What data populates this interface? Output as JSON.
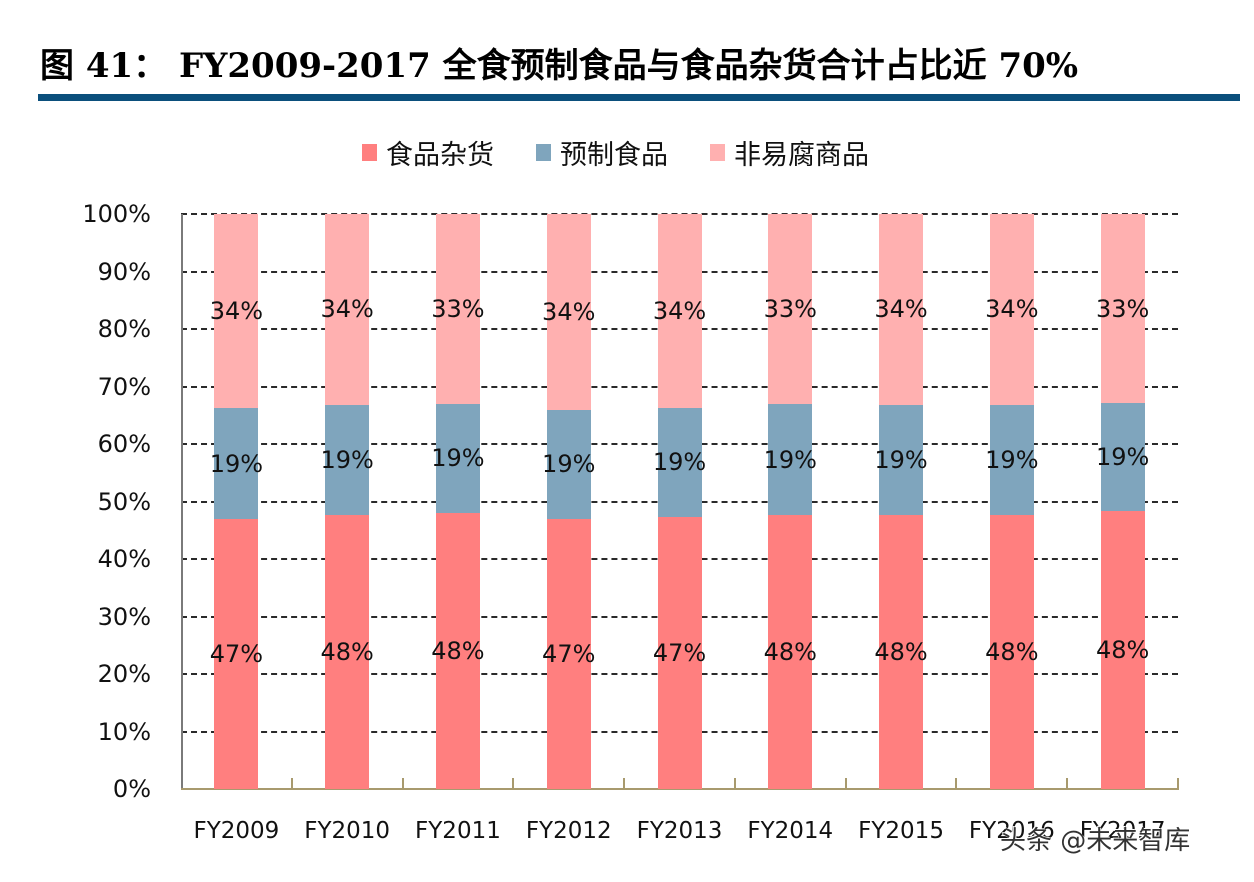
{
  "figure": {
    "title": "图 41：  FY2009-2017 全食预制食品与食品杂货合计占比近 70%",
    "watermark": "头条 @未来智库"
  },
  "legend": [
    {
      "label": "食品杂货",
      "color": "#ff7f7f"
    },
    {
      "label": "预制食品",
      "color": "#7fa5bd"
    },
    {
      "label": "非易腐商品",
      "color": "#ffb0b0"
    }
  ],
  "y_axis": {
    "ticks": [
      "0%",
      "10%",
      "20%",
      "30%",
      "40%",
      "50%",
      "60%",
      "70%",
      "80%",
      "90%",
      "100%"
    ]
  },
  "chart_data": {
    "type": "bar",
    "stacked": true,
    "title": "FY2009-2017 全食预制食品与食品杂货合计占比近 70%",
    "xlabel": "",
    "ylabel": "",
    "ylim": [
      0,
      100
    ],
    "grid": true,
    "legend_position": "top",
    "categories": [
      "FY2009",
      "FY2010",
      "FY2011",
      "FY2012",
      "FY2013",
      "FY2014",
      "FY2015",
      "FY2016",
      "FY2017"
    ],
    "series": [
      {
        "name": "食品杂货",
        "color": "#ff7f7f",
        "values": [
          47,
          48,
          48,
          47,
          47,
          48,
          48,
          48,
          48
        ],
        "labels": [
          "47%",
          "48%",
          "48%",
          "47%",
          "47%",
          "48%",
          "48%",
          "48%",
          "48%"
        ]
      },
      {
        "name": "预制食品",
        "color": "#7fa5bd",
        "values": [
          19,
          19,
          19,
          19,
          19,
          19,
          19,
          19,
          19
        ],
        "labels": [
          "19%",
          "19%",
          "19%",
          "19%",
          "19%",
          "19%",
          "19%",
          "19%",
          "19%"
        ]
      },
      {
        "name": "非易腐商品",
        "color": "#ffb0b0",
        "values": [
          34,
          34,
          33,
          34,
          34,
          33,
          34,
          34,
          33
        ],
        "labels": [
          "34%",
          "34%",
          "33%",
          "34%",
          "34%",
          "33%",
          "34%",
          "34%",
          "33%"
        ]
      }
    ],
    "rendered_heights": {
      "食品杂货": [
        47.0,
        47.6,
        48.0,
        47.0,
        47.3,
        47.6,
        47.6,
        47.6,
        48.3
      ],
      "预制食品": [
        19.2,
        19.2,
        19.0,
        19.0,
        19.0,
        19.3,
        19.2,
        19.2,
        18.8
      ]
    }
  }
}
